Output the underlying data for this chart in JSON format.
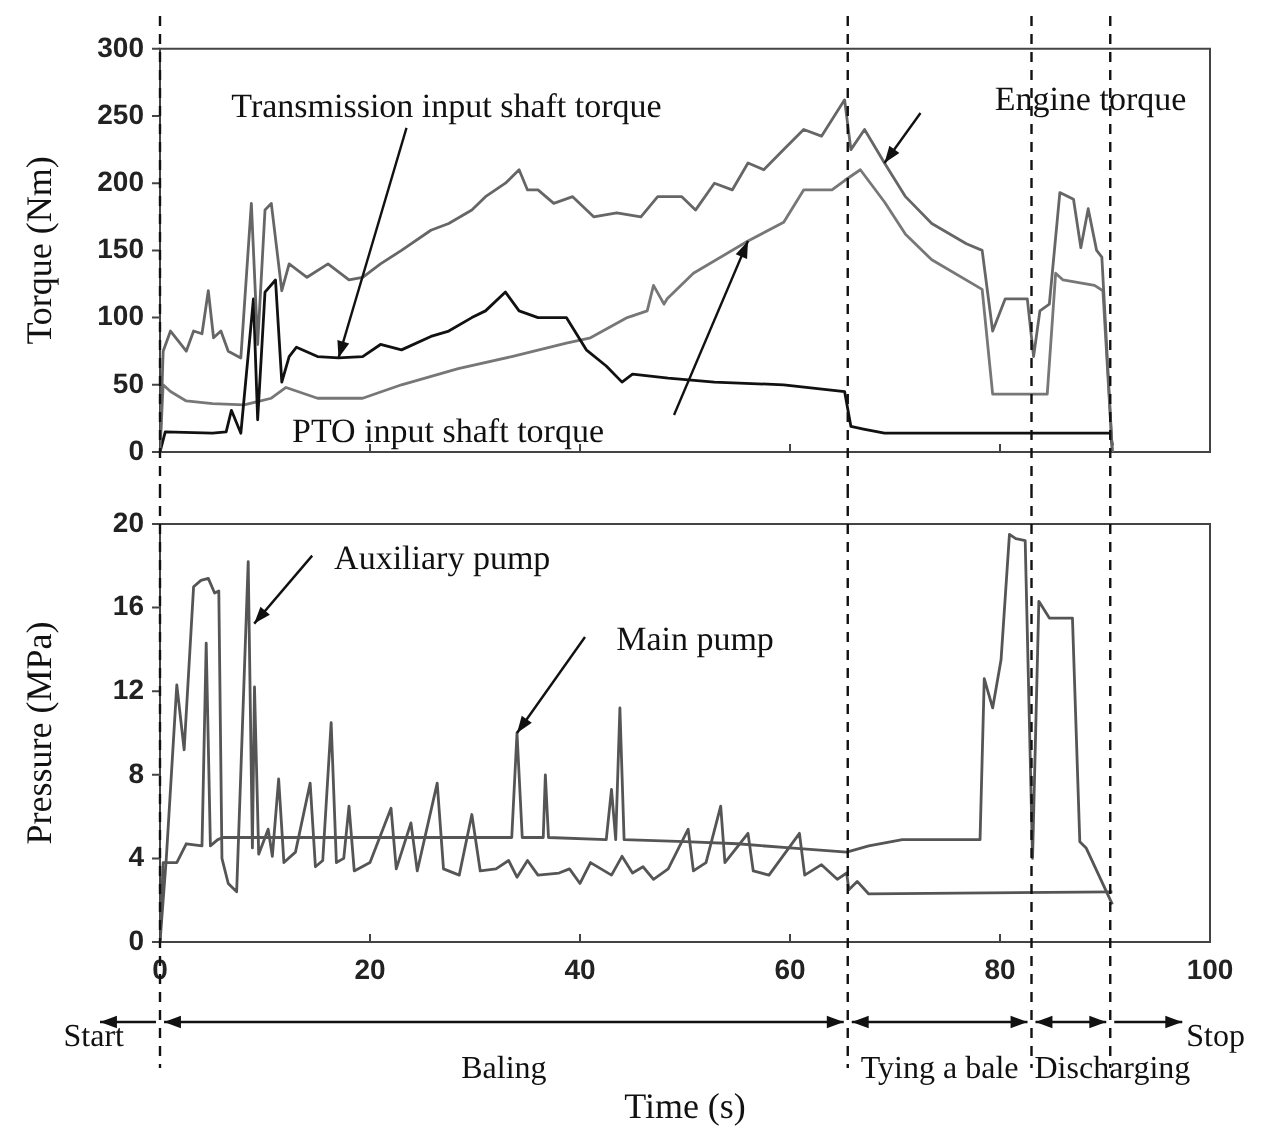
{
  "chart_data": [
    {
      "type": "line",
      "ylabel": "Torque (Nm)",
      "xlim": [
        0,
        100
      ],
      "xticks": [
        0,
        20,
        40,
        60,
        80,
        100
      ],
      "ylim": [
        0,
        300
      ],
      "yticks": [
        0,
        50,
        100,
        150,
        200,
        250,
        300
      ],
      "tick_labels": "y",
      "marker": "none",
      "ref_lines": [
        {
          "axis": "x",
          "value": 0,
          "line_style": "dashed"
        },
        {
          "axis": "x",
          "value": 65.5,
          "line_style": "dashed"
        },
        {
          "axis": "x",
          "value": 83,
          "line_style": "dashed"
        },
        {
          "axis": "x",
          "value": 90.5,
          "line_style": "dashed"
        }
      ],
      "series": [
        {
          "name": "Engine torque",
          "color": "#666666",
          "x": [
            0,
            0.3,
            1,
            2,
            2.5,
            3.2,
            4,
            4.6,
            5.1,
            5.8,
            6.5,
            7.7,
            8.7,
            9.3,
            10,
            10.6,
            11.6,
            12.3,
            14,
            16,
            18,
            19.3,
            21,
            23,
            25.8,
            27.5,
            29.7,
            31,
            32.9,
            34.2,
            35,
            36,
            37.5,
            39.3,
            41.3,
            43.5,
            45.8,
            47.4,
            49.7,
            51,
            52.8,
            54.5,
            56,
            57.5,
            59.4,
            61.3,
            63,
            65.2,
            65.8,
            67.1,
            69,
            71,
            73.5,
            76.8,
            78.3,
            79.3,
            80.5,
            82.6,
            83.2,
            83.8,
            84.7,
            85.7,
            87,
            87.7,
            88.4,
            89.2,
            89.7,
            90.7
          ],
          "values": [
            0,
            75,
            90,
            80,
            75,
            90,
            88,
            120,
            85,
            90,
            75,
            70,
            185,
            80,
            180,
            185,
            120,
            140,
            130,
            140,
            128,
            130,
            140,
            150,
            165,
            170,
            180,
            190,
            200,
            210,
            195,
            195,
            185,
            190,
            175,
            178,
            175,
            190,
            190,
            180,
            200,
            195,
            215,
            210,
            225,
            240,
            235,
            262,
            225,
            240,
            215,
            190,
            170,
            155,
            150,
            90,
            114,
            114,
            71,
            105,
            110,
            193,
            188,
            152,
            181,
            150,
            145,
            0
          ]
        },
        {
          "name": "Transmission input shaft torque",
          "color": "#111111",
          "x": [
            0,
            0.5,
            5,
            6.3,
            6.8,
            7.7,
            8.9,
            9.3,
            10,
            11,
            11.6,
            12.3,
            13,
            15,
            17,
            19.3,
            21,
            23,
            25.8,
            27.5,
            29.7,
            31,
            32.9,
            34.2,
            36,
            38.7,
            40.6,
            42.5,
            44,
            45,
            48.4,
            52.8,
            59.4,
            65.2,
            65.8,
            67,
            69,
            90.5,
            90.7
          ],
          "values": [
            0,
            15,
            14,
            15,
            31,
            14,
            114,
            24,
            119,
            128,
            52,
            71,
            78,
            71,
            70,
            71,
            80,
            76,
            86,
            90,
            100,
            105,
            119,
            105,
            100,
            100,
            76,
            64,
            52,
            58,
            55,
            52,
            50,
            45,
            19,
            17,
            14,
            14,
            5
          ]
        },
        {
          "name": "PTO input shaft torque",
          "color": "#777777",
          "x": [
            0,
            0.3,
            1,
            2.5,
            5,
            8,
            10.6,
            12,
            15,
            19.3,
            23,
            28.4,
            33.5,
            38.7,
            41,
            44.5,
            46.4,
            47,
            48,
            48.3,
            50.8,
            56,
            59.4,
            61.3,
            64,
            65.2,
            66.7,
            69,
            71,
            73.5,
            78.3,
            79.3,
            84.5,
            85.3,
            86,
            89,
            89.8,
            90.7
          ],
          "values": [
            0,
            50,
            45,
            38,
            36,
            35,
            40,
            48,
            40,
            40,
            50,
            62,
            71,
            81,
            85,
            100,
            105,
            124,
            110,
            114,
            133,
            157,
            171,
            195,
            195,
            202,
            210,
            186,
            162,
            143,
            121,
            43,
            43,
            133,
            128,
            124,
            120,
            0
          ]
        }
      ]
    },
    {
      "type": "line",
      "ylabel": "Pressure (MPa)",
      "xlabel": "Time (s)",
      "xlim": [
        0,
        100
      ],
      "xticks": [
        0,
        20,
        40,
        60,
        80,
        100
      ],
      "ylim": [
        0,
        20
      ],
      "yticks": [
        0,
        4,
        8,
        12,
        16,
        20
      ],
      "marker": "none",
      "ref_lines": [
        {
          "axis": "x",
          "value": 0,
          "label": "Start",
          "line_style": "dashed"
        },
        {
          "axis": "x",
          "value": 65.5,
          "line_style": "dashed"
        },
        {
          "axis": "x",
          "value": 83,
          "line_style": "dashed"
        },
        {
          "axis": "x",
          "value": 90.5,
          "label": "Stop",
          "line_style": "dashed"
        }
      ],
      "annotations": [
        "Baling",
        "Tying a bale",
        "Discharging"
      ],
      "series": [
        {
          "name": "Auxiliary pump",
          "color": "#555555",
          "x": [
            0,
            0.6,
            1.6,
            2.3,
            3.2,
            3.9,
            4.6,
            5.2,
            5.6,
            5.9,
            6.5,
            7.3,
            8.4,
            8.8,
            9,
            9.4,
            10.3,
            10.7,
            11.3,
            11.8,
            12.9,
            14.3,
            14.8,
            15.5,
            16.3,
            16.8,
            17.5,
            18,
            18.5,
            20,
            22,
            22.5,
            23.9,
            24.5,
            26.4,
            27,
            28.5,
            29.7,
            30.5,
            32,
            33.2,
            34,
            35,
            36,
            38,
            39,
            40,
            41,
            42,
            43,
            44,
            45,
            46,
            47,
            48.4,
            50.3,
            50.8,
            52,
            53.4,
            53.8,
            56,
            56.5,
            58,
            60.9,
            61.4,
            63,
            64.5,
            65.4,
            65.6,
            66.4,
            67.5,
            90.7
          ],
          "values": [
            0,
            4,
            12.3,
            9.2,
            17,
            17.3,
            17.4,
            16.7,
            16.8,
            4,
            2.8,
            2.4,
            18.2,
            4.5,
            12.2,
            4.2,
            5.4,
            4.1,
            7.8,
            3.8,
            4.3,
            7.6,
            3.6,
            3.9,
            10.5,
            3.8,
            4,
            6.5,
            3.4,
            3.8,
            6.4,
            3.5,
            5.7,
            3.4,
            7.6,
            3.5,
            3.2,
            6.1,
            3.4,
            3.5,
            3.9,
            3.1,
            3.9,
            3.2,
            3.3,
            3.5,
            2.8,
            3.8,
            3.5,
            3.2,
            4.1,
            3.3,
            3.6,
            3,
            3.5,
            5.4,
            3.4,
            3.8,
            6.5,
            3.8,
            5.2,
            3.4,
            3.2,
            5.2,
            3.2,
            3.7,
            3,
            3.3,
            2.5,
            2.9,
            2.3,
            2.4
          ]
        },
        {
          "name": "Main pump",
          "color": "#555555",
          "x": [
            0,
            0.3,
            1.6,
            2.5,
            4,
            4.4,
            4.8,
            5.5,
            6,
            33.5,
            34,
            34.5,
            36.5,
            36.7,
            37,
            42.5,
            43,
            43.4,
            43.8,
            44.2,
            50,
            55,
            60,
            65.4,
            67.5,
            70.7,
            78.1,
            78.5,
            79.3,
            80.1,
            80.9,
            81.5,
            82.4,
            83.1,
            83.7,
            84.7,
            86.9,
            87.6,
            88.2,
            90.7
          ],
          "values": [
            0,
            3.8,
            3.8,
            4.7,
            4.6,
            14.3,
            4.6,
            4.9,
            5,
            5,
            10,
            5,
            5,
            8,
            5,
            4.9,
            7.3,
            4.9,
            11.2,
            4.9,
            4.8,
            4.7,
            4.5,
            4.3,
            4.6,
            4.9,
            4.9,
            12.6,
            11.2,
            13.5,
            19.5,
            19.3,
            19.2,
            4,
            16.3,
            15.5,
            15.5,
            4.8,
            4.5,
            1.8
          ]
        }
      ]
    }
  ]
}
